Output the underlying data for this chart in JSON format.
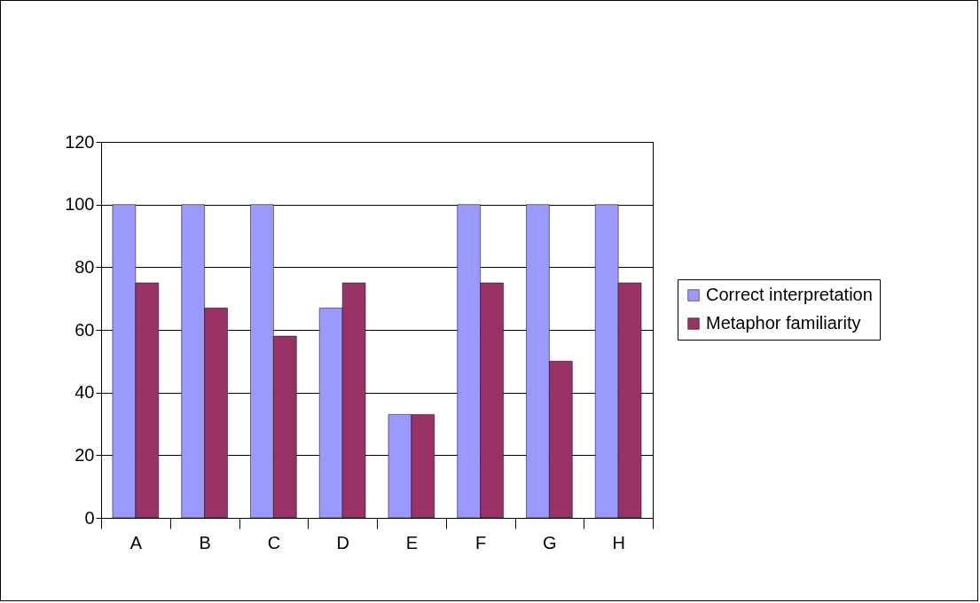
{
  "chart_data": {
    "type": "bar",
    "categories": [
      "A",
      "B",
      "C",
      "D",
      "E",
      "F",
      "G",
      "H"
    ],
    "series": [
      {
        "name": "Correct interpretation",
        "color": "#9999ff",
        "values": [
          100,
          100,
          100,
          67,
          33,
          100,
          100,
          100
        ]
      },
      {
        "name": "Metaphor familiarity",
        "color": "#993366",
        "values": [
          75,
          67,
          58,
          75,
          33,
          75,
          50,
          75
        ]
      }
    ],
    "ylim": [
      0,
      120
    ],
    "yticks": [
      0,
      20,
      40,
      60,
      80,
      100,
      120
    ],
    "grid": "y",
    "legend": "right"
  }
}
